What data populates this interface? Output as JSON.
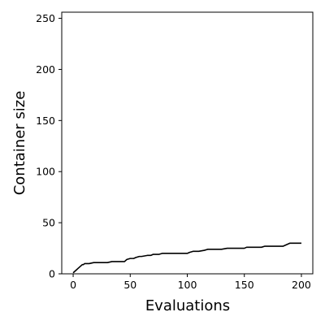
{
  "chart_data": {
    "type": "line",
    "title": "",
    "xlabel": "Evaluations",
    "ylabel": "Container size",
    "xlim": [
      -10,
      210
    ],
    "ylim": [
      0,
      256
    ],
    "xticks": [
      0,
      50,
      100,
      150,
      200
    ],
    "yticks": [
      0,
      50,
      100,
      150,
      200,
      250
    ],
    "xtick_labels": [
      "0",
      "50",
      "100",
      "150",
      "200"
    ],
    "ytick_labels": [
      "0",
      "50",
      "100",
      "150",
      "200",
      "250"
    ],
    "grid": false,
    "legend": "none",
    "series": [
      {
        "color": "#000000",
        "x": [
          0,
          1,
          2,
          3,
          4,
          5,
          6,
          7,
          8,
          9,
          10,
          12,
          14,
          18,
          20,
          25,
          30,
          34,
          40,
          45,
          47,
          50,
          53,
          55,
          58,
          60,
          65,
          68,
          70,
          75,
          78,
          80,
          90,
          100,
          102,
          105,
          110,
          115,
          118,
          120,
          130,
          135,
          140,
          150,
          152,
          155,
          160,
          165,
          168,
          170,
          180,
          184,
          186,
          188,
          190,
          195,
          200
        ],
        "y": [
          1,
          2,
          3,
          4,
          5,
          6,
          7,
          8,
          9,
          9,
          10,
          10,
          10,
          11,
          11,
          11,
          11,
          12,
          12,
          12,
          14,
          15,
          15,
          16,
          17,
          17,
          18,
          18,
          19,
          19,
          20,
          20,
          20,
          20,
          21,
          22,
          22,
          23,
          24,
          24,
          24,
          25,
          25,
          25,
          26,
          26,
          26,
          26,
          27,
          27,
          27,
          27,
          28,
          29,
          30,
          30,
          30
        ]
      }
    ]
  }
}
